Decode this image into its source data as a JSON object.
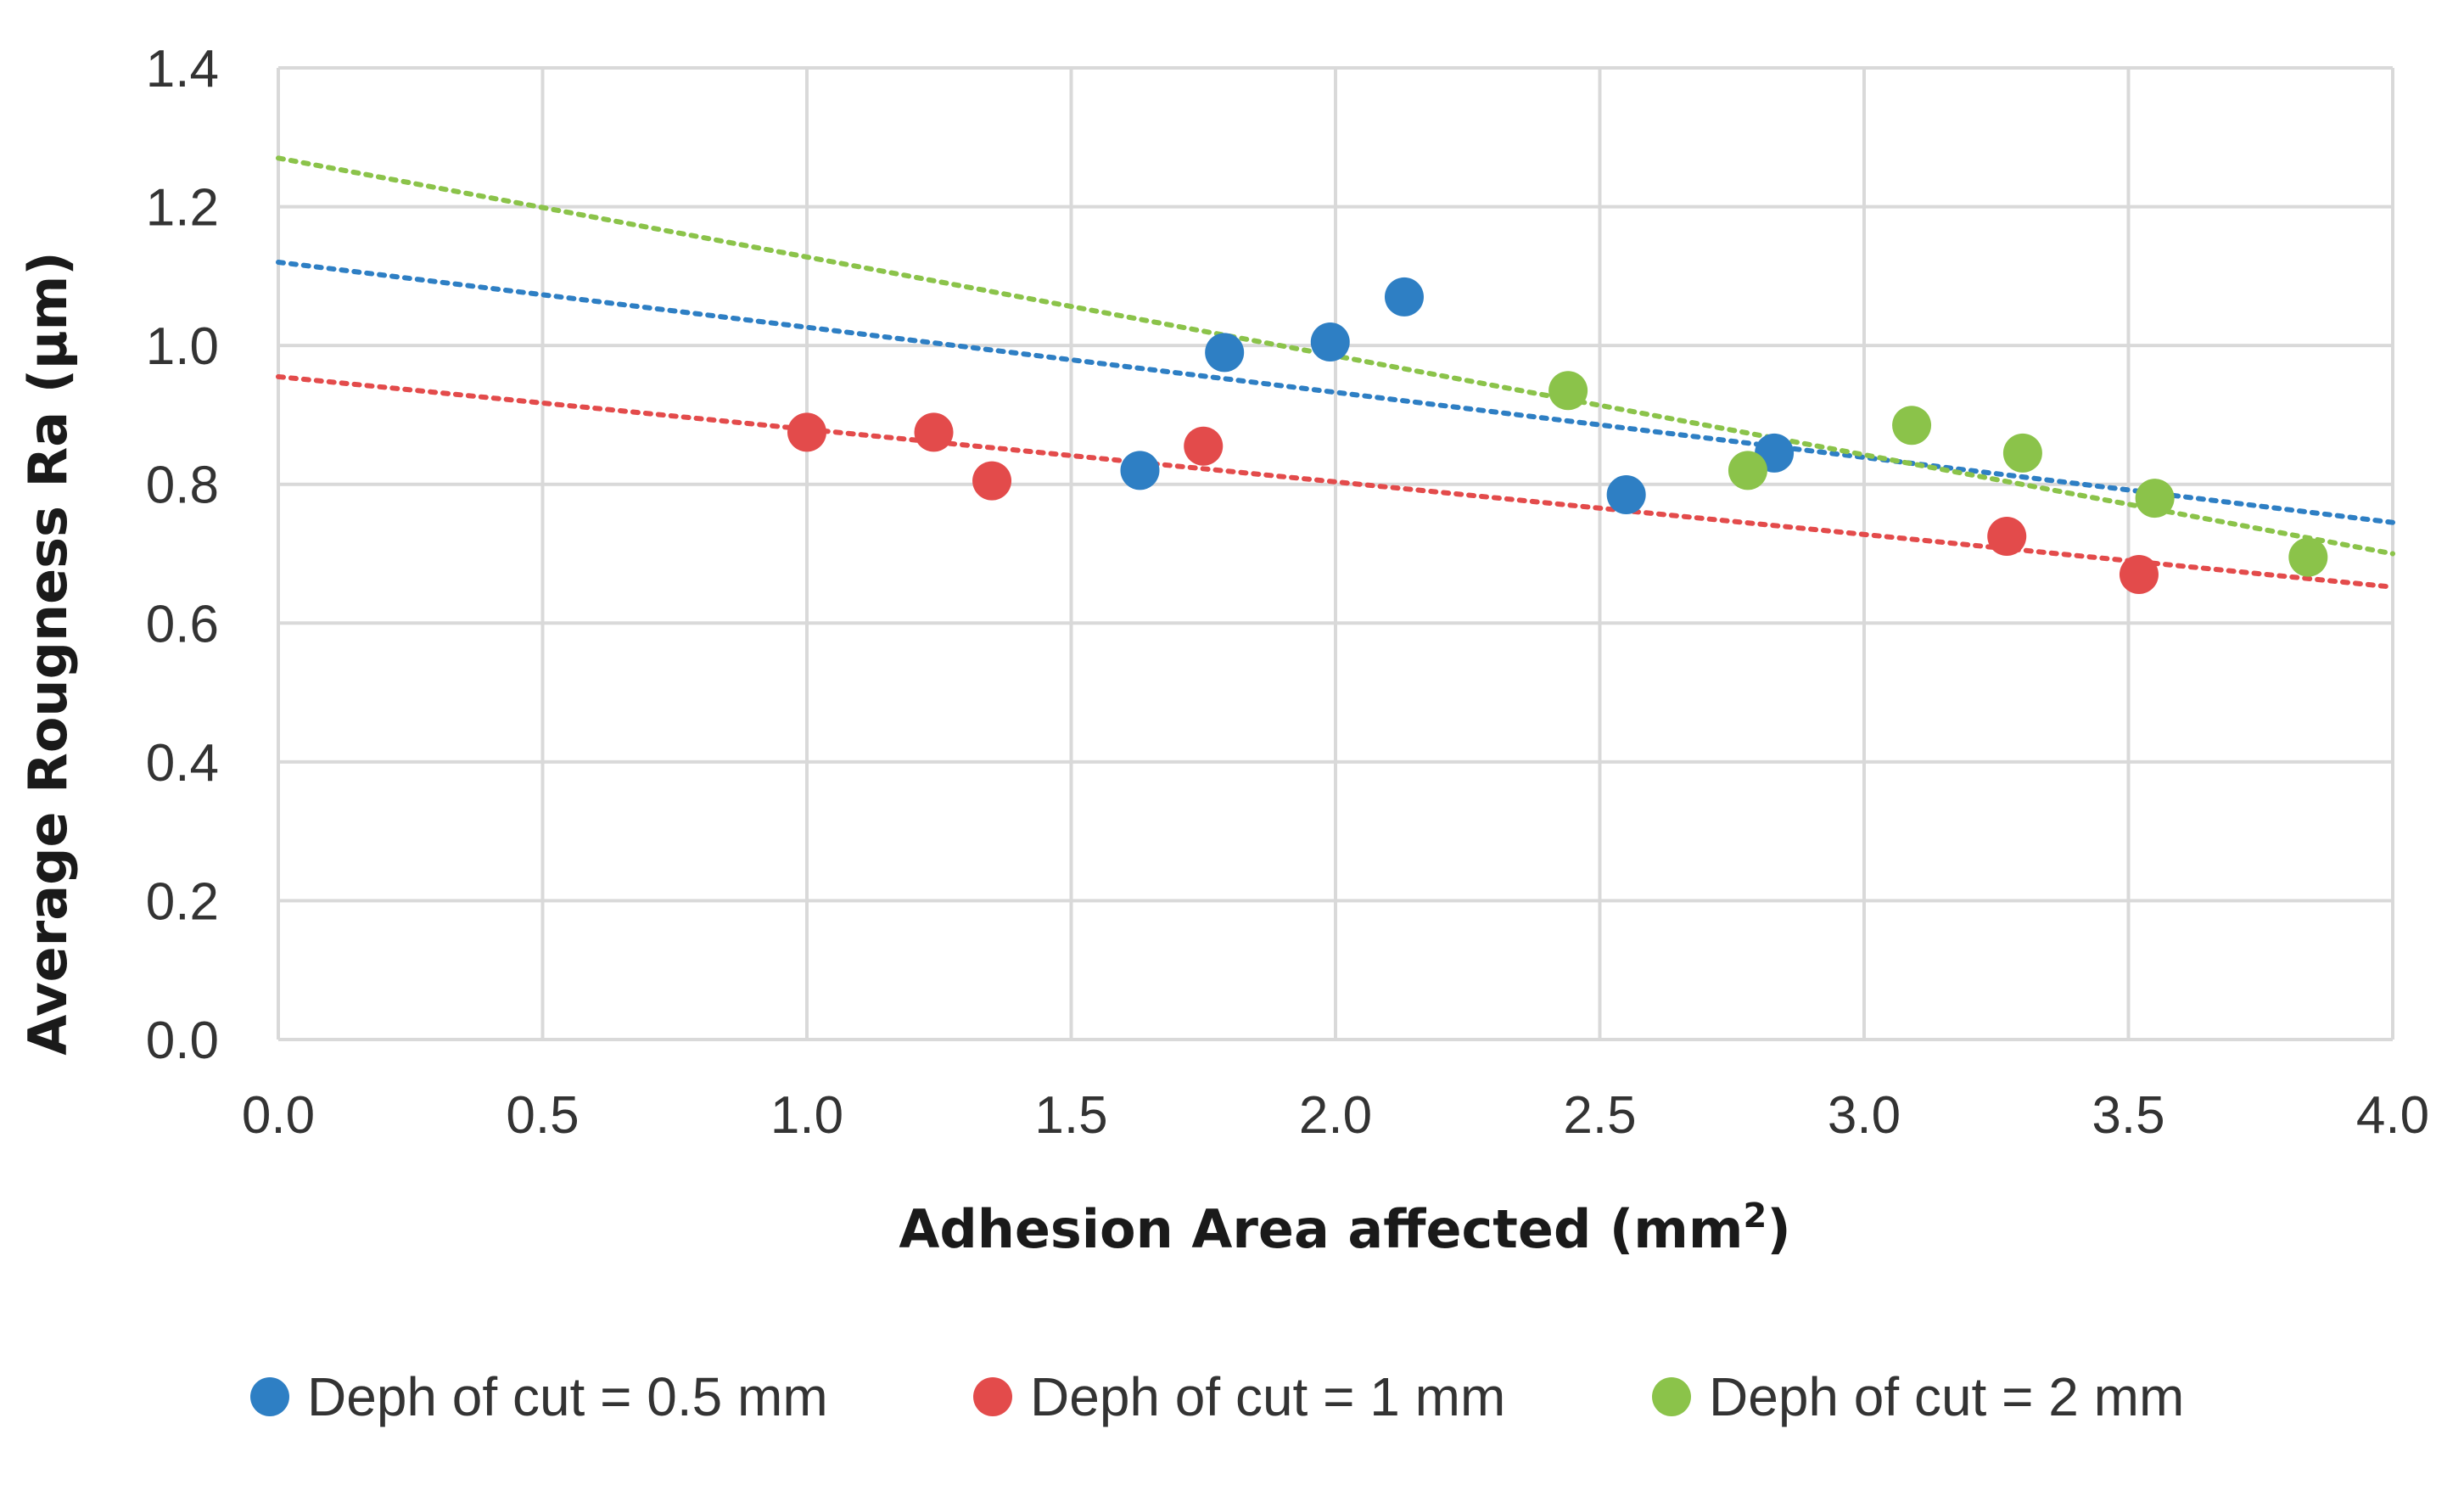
{
  "chart_data": {
    "type": "scatter",
    "title": "",
    "xlabel": "Adhesion Area affected  (mm",
    "xlabel_sup": "2",
    "xlabel_close": ")",
    "ylabel": "Average Rougness Ra (µm)",
    "xlim": [
      0.0,
      4.0
    ],
    "ylim": [
      0.0,
      1.4
    ],
    "x_ticks": [
      0.0,
      0.5,
      1.0,
      1.5,
      2.0,
      2.5,
      3.0,
      3.5,
      4.0
    ],
    "y_ticks": [
      0.0,
      0.2,
      0.4,
      0.6,
      0.8,
      1.0,
      1.2,
      1.4
    ],
    "x_tick_labels": [
      "0.0",
      "0.5",
      "1.0",
      "1.5",
      "2.0",
      "2.5",
      "3.0",
      "3.5",
      "4.0"
    ],
    "y_tick_labels": [
      "0.0",
      "0.2",
      "0.4",
      "0.6",
      "0.8",
      "1.0",
      "1.2",
      "1.4"
    ],
    "grid": true,
    "legend_position": "bottom",
    "series": [
      {
        "name": "Deph of cut = 0.5 mm",
        "color": "#2e7fc4",
        "x": [
          1.63,
          1.79,
          1.99,
          2.13,
          2.55,
          2.83
        ],
        "y": [
          0.82,
          0.99,
          1.005,
          1.07,
          0.785,
          0.845
        ],
        "trendline": {
          "type": "linear",
          "y_at_xmin": 1.12,
          "y_at_xmax": 0.745
        }
      },
      {
        "name": "Deph of cut = 1 mm",
        "color": "#e34b4b",
        "x": [
          1.0,
          1.24,
          1.35,
          1.75,
          3.27,
          3.52
        ],
        "y": [
          0.875,
          0.875,
          0.805,
          0.855,
          0.725,
          0.67
        ],
        "trendline": {
          "type": "linear",
          "y_at_xmin": 0.955,
          "y_at_xmax": 0.652
        }
      },
      {
        "name": "Deph of cut = 2 mm",
        "color": "#8bc34a",
        "x": [
          2.44,
          2.78,
          3.09,
          3.3,
          3.55,
          3.84
        ],
        "y": [
          0.935,
          0.82,
          0.885,
          0.845,
          0.78,
          0.695
        ],
        "trendline": {
          "type": "linear",
          "y_at_xmin": 1.27,
          "y_at_xmax": 0.7
        }
      }
    ]
  }
}
